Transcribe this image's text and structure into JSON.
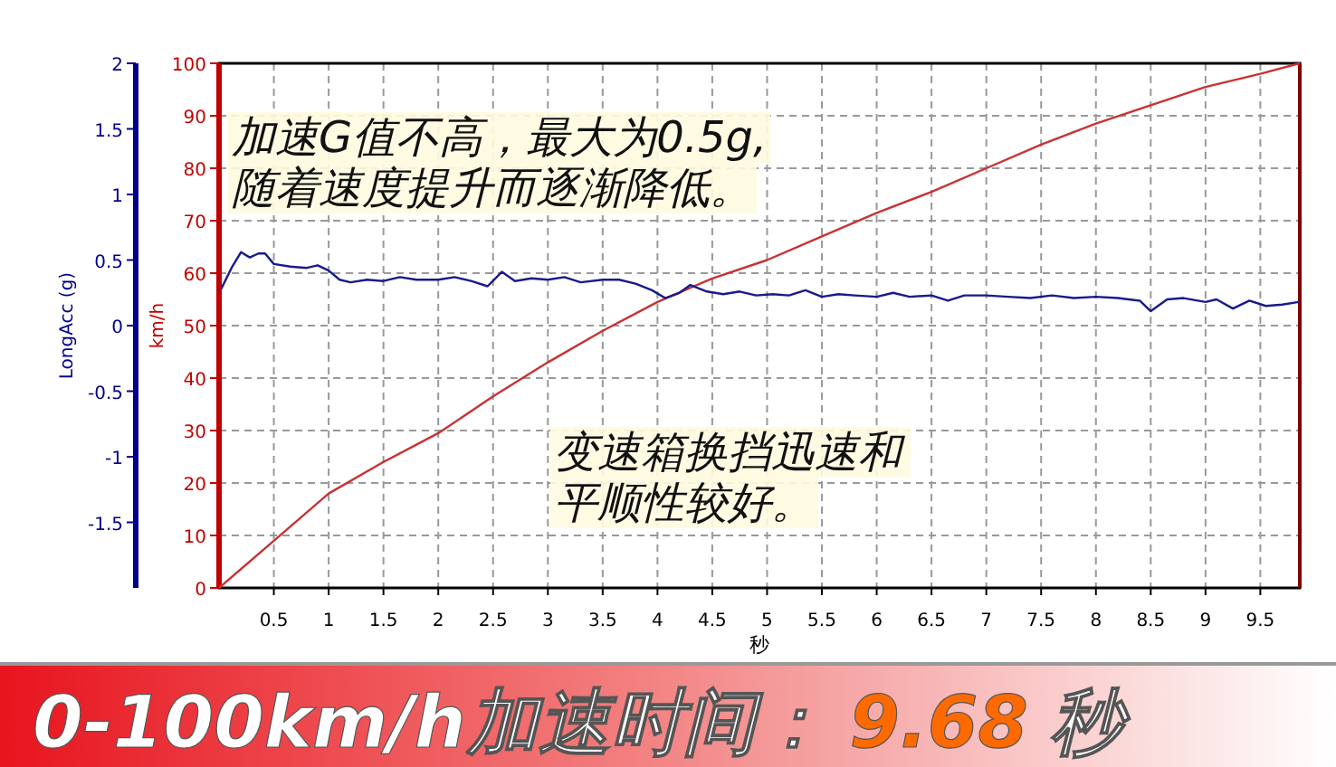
{
  "chart_data": {
    "type": "line",
    "xlabel": "秒",
    "ylabel": "km/h",
    "y2label": "LongAcc (g)",
    "xlim": [
      0,
      9.86
    ],
    "xticks": [
      0.5,
      1,
      1.5,
      2,
      2.5,
      3,
      3.5,
      4,
      4.5,
      5,
      5.5,
      6,
      6.5,
      7,
      7.5,
      8,
      8.5,
      9,
      9.5
    ],
    "ylim": [
      0,
      100
    ],
    "yticks": [
      0,
      10,
      20,
      30,
      40,
      50,
      60,
      70,
      80,
      90,
      100
    ],
    "y2lim": [
      -2,
      2
    ],
    "y2ticks": [
      -1.5,
      -1,
      -0.5,
      0,
      0.5,
      1,
      1.5,
      2
    ],
    "grid": true,
    "series": [
      {
        "color": "#c83232",
        "x": [
          0,
          0.5,
          1,
          1.5,
          2,
          2.5,
          3,
          3.5,
          4,
          4.5,
          5,
          5.5,
          6,
          6.5,
          7,
          7.5,
          8,
          8.5,
          9,
          9.5,
          9.86
        ],
        "values": [
          0,
          9,
          18,
          24,
          29.5,
          36.5,
          43,
          49,
          54.5,
          59,
          62.5,
          67,
          71.5,
          75.5,
          80,
          84.5,
          88.5,
          92,
          95.5,
          98,
          100
        ]
      },
      {
        "color": "#1a1a8c",
        "axis": "y2",
        "x": [
          0.02,
          0.12,
          0.2,
          0.28,
          0.36,
          0.42,
          0.5,
          0.65,
          0.8,
          0.9,
          1.0,
          1.1,
          1.2,
          1.35,
          1.5,
          1.65,
          1.8,
          2.0,
          2.15,
          2.3,
          2.45,
          2.58,
          2.7,
          2.85,
          3.0,
          3.15,
          3.3,
          3.5,
          3.65,
          3.8,
          3.95,
          4.07,
          4.2,
          4.3,
          4.45,
          4.6,
          4.75,
          4.9,
          5.05,
          5.2,
          5.35,
          5.5,
          5.65,
          5.8,
          6.0,
          6.15,
          6.3,
          6.5,
          6.65,
          6.8,
          7.0,
          7.2,
          7.4,
          7.6,
          7.8,
          8.0,
          8.2,
          8.4,
          8.5,
          8.65,
          8.8,
          9.0,
          9.1,
          9.25,
          9.4,
          9.55,
          9.7,
          9.85
        ],
        "values": [
          0.28,
          0.45,
          0.56,
          0.52,
          0.55,
          0.55,
          0.47,
          0.45,
          0.44,
          0.46,
          0.42,
          0.35,
          0.33,
          0.35,
          0.34,
          0.37,
          0.35,
          0.35,
          0.37,
          0.34,
          0.3,
          0.41,
          0.34,
          0.36,
          0.35,
          0.37,
          0.33,
          0.35,
          0.35,
          0.32,
          0.27,
          0.21,
          0.25,
          0.31,
          0.26,
          0.24,
          0.26,
          0.23,
          0.24,
          0.23,
          0.27,
          0.22,
          0.24,
          0.23,
          0.22,
          0.25,
          0.22,
          0.23,
          0.19,
          0.23,
          0.23,
          0.22,
          0.21,
          0.23,
          0.21,
          0.22,
          0.21,
          0.19,
          0.11,
          0.2,
          0.21,
          0.18,
          0.2,
          0.13,
          0.19,
          0.15,
          0.16,
          0.18
        ]
      }
    ],
    "annotations": [
      "加速G值不高，最大为0.5g,",
      "随着速度提升而逐渐降低。",
      "变速箱换挡迅速和",
      "平顺性较好。",
      "0-100km/h加速时间：",
      "9.68",
      "秒"
    ]
  }
}
